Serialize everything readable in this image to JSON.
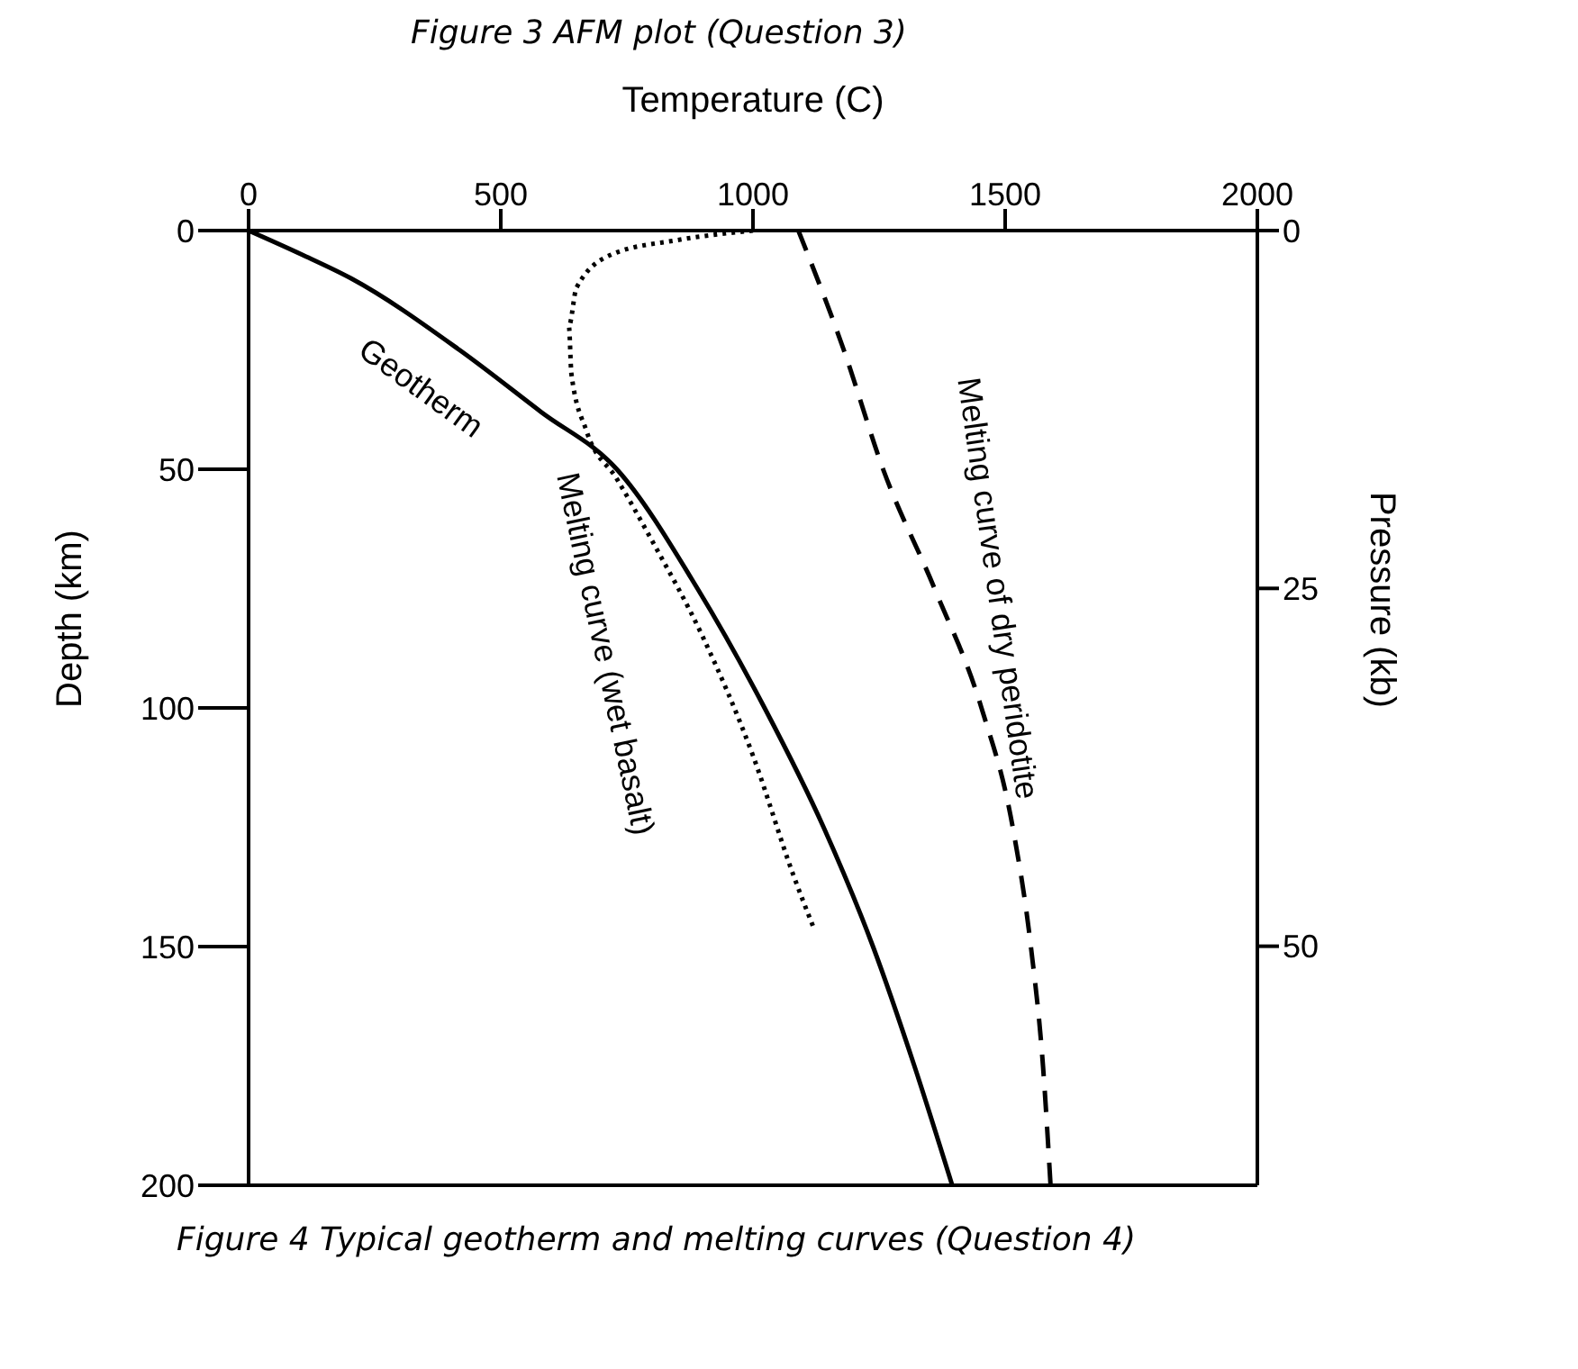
{
  "chart_data": {
    "type": "line",
    "title": "Figure 3 AFM plot (Question 3)",
    "xlabel": "Temperature (C)",
    "ylabel": "Depth (km)",
    "y2label": "Pressure (kb)",
    "annotations": [
      "Figure 4 Typical geotherm and melting curves (Question 4)"
    ],
    "xlim": [
      0,
      2000
    ],
    "xticks": [
      0,
      500,
      1000,
      1500,
      2000
    ],
    "ylim": [
      200,
      0
    ],
    "yticks": [
      0,
      50,
      100,
      150,
      200
    ],
    "y2lim": [
      66.7,
      0
    ],
    "y2ticks": [
      0,
      25,
      50
    ],
    "marker": "none",
    "series": [
      {
        "name": "Geotherm",
        "color": "#000000",
        "line_style": "solid",
        "x": [
          0,
          105,
          203,
          418,
          580,
          730,
          890,
          1023,
          1140,
          1238,
          1320,
          1395
        ],
        "values": [
          0,
          5,
          10,
          25,
          38,
          50,
          75,
          100,
          125,
          150,
          175,
          200
        ]
      },
      {
        "name": "Melting curve (wet basalt)",
        "color": "#000000",
        "line_style": "dotted",
        "x": [
          1000,
          850,
          720,
          650,
          635,
          640,
          670,
          730,
          800,
          900,
          1000,
          1080,
          1120
        ],
        "values": [
          0,
          2,
          5,
          12,
          20,
          30,
          42,
          52,
          65,
          85,
          110,
          135,
          146
        ]
      },
      {
        "name": "Melting curve of dry peridotite",
        "color": "#000000",
        "line_style": "dashed",
        "x": [
          1090,
          1180,
          1258,
          1360,
          1453,
          1515,
          1551,
          1575,
          1590
        ],
        "values": [
          0,
          25,
          50,
          75,
          100,
          125,
          150,
          175,
          200
        ]
      }
    ]
  }
}
